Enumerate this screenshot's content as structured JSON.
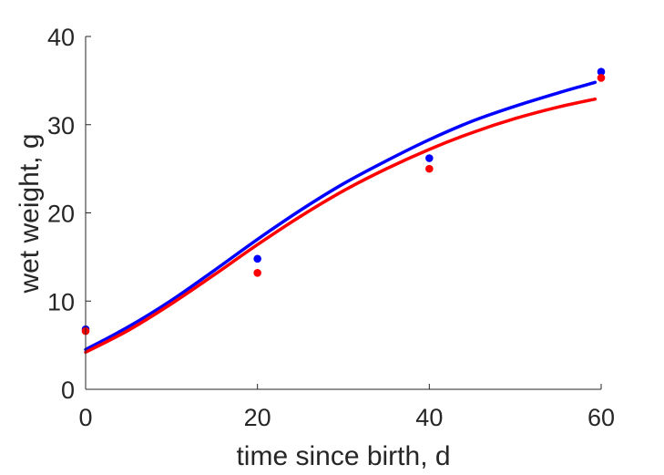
{
  "chart_data": {
    "type": "line",
    "title": "",
    "xlabel": "time since birth, d",
    "ylabel": "wet weight, g",
    "xlim": [
      0,
      60
    ],
    "ylim": [
      0,
      40
    ],
    "xticks": [
      0,
      20,
      40,
      60
    ],
    "xtick_labels": [
      "0",
      "20",
      "40",
      "60"
    ],
    "yticks": [
      0,
      10,
      20,
      30,
      40
    ],
    "ytick_labels": [
      "0",
      "10",
      "20",
      "30",
      "40"
    ],
    "grid": false,
    "legend": false,
    "series": [
      {
        "kind": "line",
        "color": "#0000ff",
        "x": [
          0,
          5,
          10,
          15,
          20,
          25,
          30,
          35,
          40,
          45,
          50,
          55,
          59.3
        ],
        "y": [
          4.5,
          7.1,
          10.1,
          13.5,
          17.0,
          20.3,
          23.3,
          25.9,
          28.3,
          30.4,
          32.1,
          33.6,
          34.8
        ]
      },
      {
        "kind": "line",
        "color": "#ff0000",
        "x": [
          0,
          5,
          10,
          15,
          20,
          25,
          30,
          35,
          40,
          45,
          50,
          55,
          59.3
        ],
        "y": [
          4.2,
          6.7,
          9.7,
          13.0,
          16.4,
          19.6,
          22.5,
          25.0,
          27.2,
          29.1,
          30.7,
          32.0,
          32.9
        ]
      },
      {
        "kind": "scatter",
        "color": "#0000ff",
        "x": [
          0,
          20,
          40,
          60
        ],
        "y": [
          6.8,
          14.8,
          26.2,
          36.0
        ]
      },
      {
        "kind": "scatter",
        "color": "#ff0000",
        "x": [
          0,
          20,
          40,
          60
        ],
        "y": [
          6.6,
          13.2,
          25.0,
          35.3
        ]
      }
    ]
  }
}
